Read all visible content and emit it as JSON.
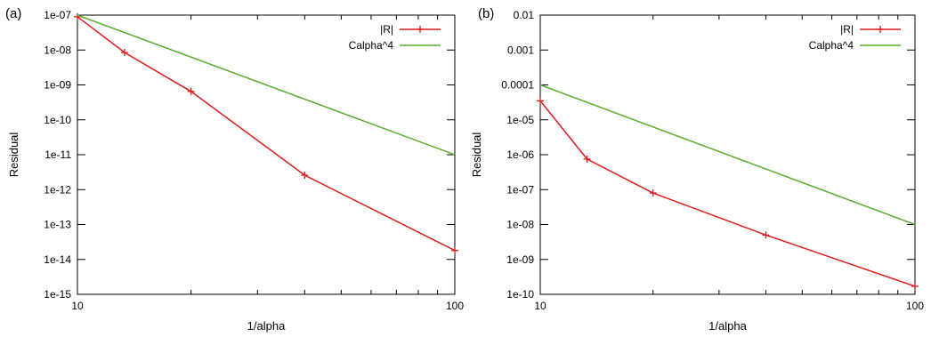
{
  "chart_data": [
    {
      "panel_label": "(a)",
      "type": "line",
      "x_scale": "log",
      "y_scale": "log",
      "xlabel": "1/alpha",
      "ylabel": "Residual",
      "xlim": [
        10,
        100
      ],
      "ylim": [
        1e-15,
        1e-07
      ],
      "x_ticks": [
        10,
        100
      ],
      "x_tick_labels": [
        "10",
        "100"
      ],
      "y_ticks": [
        1e-15,
        1e-14,
        1e-13,
        1e-12,
        1e-11,
        1e-10,
        1e-09,
        1e-08,
        1e-07
      ],
      "y_tick_labels": [
        "1e-15",
        "1e-14",
        "1e-13",
        "1e-12",
        "1e-11",
        "1e-10",
        "1e-09",
        "1e-08",
        "1e-07"
      ],
      "grid": false,
      "legend_position": "top-right",
      "series": [
        {
          "name": "|R|",
          "color": "#dd1c1c",
          "marker": "plus",
          "x": [
            10,
            13.33,
            20,
            40,
            100
          ],
          "y": [
            9e-08,
            8.5e-09,
            6.5e-10,
            2.6e-12,
            1.8e-14
          ]
        },
        {
          "name": "Calpha^4",
          "color": "#5aad2e",
          "marker": "none",
          "x": [
            10,
            100
          ],
          "y": [
            1e-07,
            1e-11
          ]
        }
      ]
    },
    {
      "panel_label": "(b)",
      "type": "line",
      "x_scale": "log",
      "y_scale": "log",
      "xlabel": "1/alpha",
      "ylabel": "Residual",
      "xlim": [
        10,
        100
      ],
      "ylim": [
        1e-10,
        0.01
      ],
      "x_ticks": [
        10,
        100
      ],
      "x_tick_labels": [
        "10",
        "100"
      ],
      "y_ticks": [
        1e-10,
        1e-09,
        1e-08,
        1e-07,
        1e-06,
        1e-05,
        0.0001,
        0.001,
        0.01
      ],
      "y_tick_labels": [
        "1e-10",
        "1e-09",
        "1e-08",
        "1e-07",
        "1e-06",
        "1e-05",
        "0.0001",
        "0.001",
        "0.01"
      ],
      "grid": false,
      "legend_position": "top-right",
      "series": [
        {
          "name": "|R|",
          "color": "#dd1c1c",
          "marker": "plus",
          "x": [
            10,
            13.33,
            20,
            40,
            100
          ],
          "y": [
            3.5e-05,
            7.5e-07,
            8e-08,
            5e-09,
            1.7e-10
          ]
        },
        {
          "name": "Calpha^4",
          "color": "#5aad2e",
          "marker": "none",
          "x": [
            10,
            100
          ],
          "y": [
            0.0001,
            1e-08
          ]
        }
      ]
    }
  ]
}
